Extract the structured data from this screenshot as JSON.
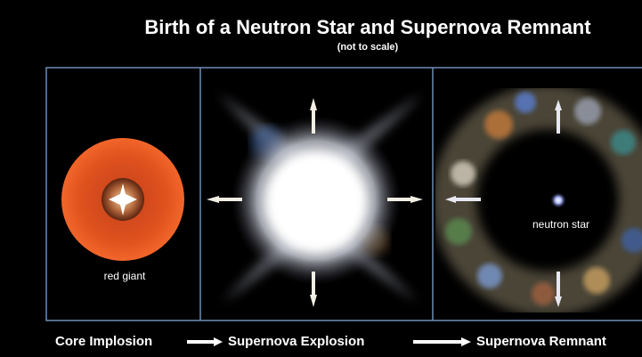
{
  "header": {
    "title": "Birth of a Neutron Star and Supernova Remnant",
    "subtitle": "(not to scale)"
  },
  "panels": [
    {
      "label": "red giant"
    },
    {
      "label": "neutron star"
    }
  ],
  "stages": [
    "Core Implosion",
    "Supernova Explosion",
    "Supernova Remnant"
  ]
}
